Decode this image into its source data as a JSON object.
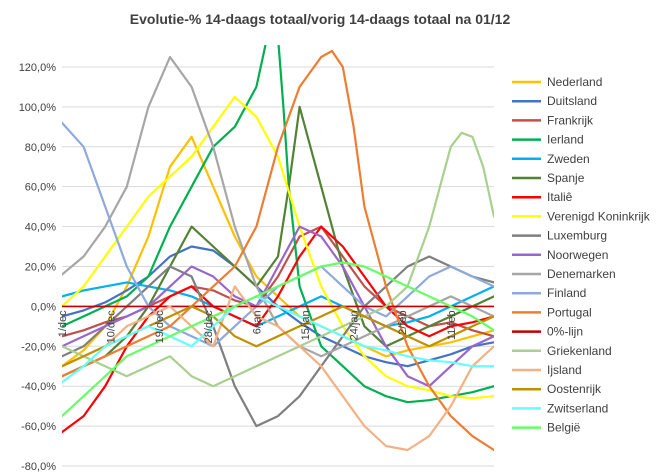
{
  "chart_data": {
    "type": "line",
    "title": "Evolutie-% 14-daags totaal/vorig 14-daags totaal na 01/12",
    "xlabel": "",
    "ylabel": "",
    "ylim": [
      -80,
      130
    ],
    "y_ticks": [
      "-80,0%",
      "-60,0%",
      "-40,0%",
      "-20,0%",
      "0,0%",
      "20,0%",
      "40,0%",
      "60,0%",
      "80,0%",
      "100,0%",
      "120,0%"
    ],
    "y_tick_values": [
      -80,
      -60,
      -40,
      -20,
      0,
      20,
      40,
      60,
      80,
      100,
      120
    ],
    "x_ticks": [
      {
        "label": "1/dec",
        "day": 0
      },
      {
        "label": "10/dec",
        "day": 9
      },
      {
        "label": "19/dec",
        "day": 18
      },
      {
        "label": "28/dec",
        "day": 27
      },
      {
        "label": "6/jan",
        "day": 36
      },
      {
        "label": "15/jan",
        "day": 45
      },
      {
        "label": "24/jan",
        "day": 54
      },
      {
        "label": "2/feb",
        "day": 63
      },
      {
        "label": "11/feb",
        "day": 72
      }
    ],
    "x_range": [
      0,
      80
    ],
    "legend_position": "right",
    "grid": "horizontal",
    "series": [
      {
        "name": "Nederland",
        "color": "#FFC000",
        "x": [
          0,
          4,
          8,
          12,
          16,
          20,
          24,
          28,
          32,
          36,
          40,
          44,
          48,
          52,
          56,
          60,
          64,
          68,
          72,
          76,
          80
        ],
        "values": [
          -30,
          -22,
          -10,
          10,
          35,
          70,
          85,
          60,
          35,
          15,
          5,
          -5,
          -10,
          -15,
          -20,
          -25,
          -22,
          -20,
          -18,
          -15,
          -12
        ]
      },
      {
        "name": "Duitsland",
        "color": "#4472C4",
        "x": [
          0,
          4,
          8,
          12,
          16,
          20,
          24,
          28,
          32,
          36,
          40,
          44,
          48,
          52,
          56,
          60,
          64,
          68,
          72,
          76,
          80
        ],
        "values": [
          -5,
          -2,
          2,
          8,
          15,
          25,
          30,
          28,
          20,
          10,
          0,
          -8,
          -15,
          -20,
          -25,
          -28,
          -30,
          -27,
          -24,
          -20,
          -18
        ]
      },
      {
        "name": "Frankrijk",
        "color": "#C0504D",
        "x": [
          0,
          4,
          8,
          12,
          16,
          20,
          24,
          28,
          32,
          36,
          40,
          44,
          48,
          52,
          56,
          60,
          64,
          68,
          72,
          76,
          80
        ],
        "values": [
          -15,
          -12,
          -8,
          -5,
          0,
          5,
          10,
          8,
          3,
          0,
          15,
          35,
          40,
          25,
          10,
          0,
          -5,
          -10,
          -8,
          -12,
          -15
        ]
      },
      {
        "name": "Ierland",
        "color": "#00B050",
        "x": [
          0,
          4,
          8,
          12,
          16,
          20,
          24,
          28,
          32,
          36,
          38,
          39,
          40,
          41,
          42,
          44,
          48,
          52,
          56,
          60,
          64,
          68,
          72,
          76,
          80
        ],
        "values": [
          -10,
          -5,
          0,
          5,
          15,
          40,
          60,
          80,
          90,
          110,
          135,
          135,
          135,
          100,
          60,
          10,
          -20,
          -30,
          -40,
          -45,
          -48,
          -47,
          -45,
          -43,
          -40
        ]
      },
      {
        "name": "Zweden",
        "color": "#00B0F0",
        "x": [
          0,
          4,
          8,
          12,
          16,
          20,
          24,
          28,
          32,
          36,
          40,
          44,
          48,
          52,
          56,
          60,
          64,
          68,
          72,
          76,
          80
        ],
        "values": [
          5,
          8,
          10,
          12,
          10,
          8,
          5,
          0,
          -5,
          -10,
          -5,
          0,
          5,
          0,
          -5,
          -10,
          -8,
          -5,
          0,
          5,
          10
        ]
      },
      {
        "name": "Spanje",
        "color": "#548235",
        "x": [
          0,
          4,
          8,
          12,
          16,
          20,
          24,
          28,
          32,
          36,
          40,
          42,
          44,
          46,
          48,
          52,
          56,
          60,
          64,
          68,
          72,
          76,
          80
        ],
        "values": [
          -35,
          -30,
          -25,
          -15,
          0,
          20,
          40,
          30,
          20,
          10,
          25,
          60,
          100,
          80,
          60,
          20,
          -10,
          -20,
          -15,
          -10,
          -5,
          0,
          5
        ]
      },
      {
        "name": "Italiê",
        "color": "#FF0000",
        "x": [
          0,
          4,
          8,
          12,
          16,
          20,
          24,
          28,
          32,
          36,
          40,
          44,
          48,
          52,
          56,
          60,
          64,
          68,
          72,
          76,
          80
        ],
        "values": [
          -63,
          -55,
          -40,
          -20,
          -5,
          5,
          10,
          0,
          -5,
          -10,
          5,
          25,
          40,
          30,
          15,
          0,
          -10,
          -15,
          -10,
          -8,
          -5
        ]
      },
      {
        "name": "Verenigd Koninkrijk",
        "color": "#FFFF00",
        "x": [
          0,
          4,
          8,
          12,
          16,
          20,
          24,
          28,
          32,
          36,
          40,
          44,
          48,
          52,
          56,
          60,
          64,
          68,
          72,
          76,
          80
        ],
        "values": [
          0,
          10,
          25,
          40,
          55,
          65,
          75,
          90,
          105,
          95,
          75,
          40,
          10,
          -10,
          -25,
          -35,
          -40,
          -42,
          -45,
          -46,
          -45
        ]
      },
      {
        "name": "Luxemburg",
        "color": "#7F7F7F",
        "x": [
          0,
          4,
          8,
          12,
          16,
          20,
          24,
          28,
          32,
          36,
          40,
          44,
          48,
          52,
          56,
          60,
          64,
          68,
          72,
          76,
          80
        ],
        "values": [
          -25,
          -20,
          -10,
          0,
          10,
          20,
          15,
          -10,
          -40,
          -60,
          -55,
          -45,
          -30,
          -15,
          0,
          10,
          20,
          25,
          20,
          15,
          12
        ]
      },
      {
        "name": "Noorwegen",
        "color": "#9966CC",
        "x": [
          0,
          4,
          8,
          12,
          16,
          20,
          24,
          28,
          32,
          36,
          40,
          44,
          48,
          52,
          56,
          60,
          64,
          68,
          72,
          76,
          80
        ],
        "values": [
          -20,
          -15,
          -10,
          -5,
          0,
          10,
          20,
          15,
          5,
          0,
          20,
          40,
          35,
          20,
          0,
          -20,
          -35,
          -40,
          -30,
          -20,
          -15
        ]
      },
      {
        "name": "Denemarken",
        "color": "#A6A6A6",
        "x": [
          0,
          4,
          8,
          12,
          16,
          20,
          24,
          28,
          32,
          36,
          40,
          44,
          48,
          52,
          56,
          60,
          64,
          68,
          72,
          76,
          80
        ],
        "values": [
          16,
          25,
          40,
          60,
          100,
          125,
          110,
          80,
          40,
          10,
          -10,
          -20,
          -25,
          -20,
          -15,
          -10,
          -5,
          0,
          5,
          0,
          -5
        ]
      },
      {
        "name": "Finland",
        "color": "#8EA9DB",
        "x": [
          0,
          4,
          8,
          12,
          16,
          20,
          24,
          28,
          32,
          36,
          40,
          44,
          48,
          52,
          56,
          60,
          64,
          68,
          72,
          76,
          80
        ],
        "values": [
          92,
          80,
          50,
          20,
          0,
          -10,
          -15,
          -20,
          -10,
          0,
          10,
          15,
          20,
          10,
          0,
          -5,
          5,
          15,
          20,
          15,
          10
        ]
      },
      {
        "name": "Portugal",
        "color": "#ED7D31",
        "x": [
          0,
          4,
          8,
          12,
          16,
          20,
          24,
          28,
          32,
          36,
          40,
          44,
          48,
          50,
          52,
          54,
          56,
          60,
          64,
          68,
          72,
          76,
          80
        ],
        "values": [
          -35,
          -30,
          -25,
          -20,
          -15,
          -10,
          0,
          10,
          20,
          40,
          80,
          110,
          125,
          128,
          120,
          90,
          50,
          10,
          -20,
          -40,
          -55,
          -65,
          -72
        ]
      },
      {
        "name": "0%-lijn",
        "color": "#C00000",
        "x": [
          0,
          80
        ],
        "values": [
          0,
          0
        ]
      },
      {
        "name": "Griekenland",
        "color": "#A9D08E",
        "x": [
          0,
          4,
          8,
          12,
          16,
          20,
          24,
          28,
          32,
          36,
          40,
          44,
          48,
          52,
          56,
          60,
          64,
          68,
          70,
          72,
          74,
          76,
          78,
          80
        ],
        "values": [
          -20,
          -25,
          -30,
          -35,
          -30,
          -25,
          -35,
          -40,
          -35,
          -30,
          -25,
          -20,
          -15,
          -10,
          -5,
          0,
          10,
          40,
          60,
          80,
          87,
          85,
          70,
          45
        ]
      },
      {
        "name": "Ijsland",
        "color": "#F4B183",
        "x": [
          0,
          4,
          8,
          12,
          16,
          20,
          24,
          28,
          32,
          36,
          40,
          44,
          48,
          52,
          56,
          60,
          64,
          68,
          72,
          76,
          80
        ],
        "values": [
          -30,
          -25,
          -20,
          -10,
          -5,
          0,
          -10,
          -20,
          10,
          -5,
          -10,
          -20,
          -30,
          -45,
          -60,
          -70,
          -72,
          -65,
          -50,
          -30,
          -20
        ]
      },
      {
        "name": "Oostenrijk",
        "color": "#BF9000",
        "x": [
          0,
          4,
          8,
          12,
          16,
          20,
          24,
          28,
          32,
          36,
          40,
          44,
          48,
          52,
          56,
          60,
          64,
          68,
          72,
          76,
          80
        ],
        "values": [
          -30,
          -25,
          -20,
          -15,
          -10,
          -5,
          0,
          -5,
          -15,
          -20,
          -15,
          -10,
          -5,
          0,
          -5,
          -10,
          -15,
          -20,
          -15,
          -10,
          -5
        ]
      },
      {
        "name": "Zwitserland",
        "color": "#66FFFF",
        "x": [
          0,
          4,
          8,
          12,
          16,
          20,
          24,
          28,
          32,
          36,
          40,
          44,
          48,
          52,
          56,
          60,
          64,
          68,
          72,
          76,
          80
        ],
        "values": [
          -38,
          -30,
          -20,
          -15,
          -10,
          -15,
          -20,
          -10,
          0,
          5,
          0,
          -5,
          -10,
          -15,
          -20,
          -22,
          -25,
          -27,
          -28,
          -30,
          -30
        ]
      },
      {
        "name": "België",
        "color": "#66FF66",
        "x": [
          0,
          4,
          8,
          12,
          16,
          20,
          24,
          28,
          32,
          36,
          40,
          44,
          48,
          52,
          56,
          60,
          64,
          68,
          72,
          76,
          80
        ],
        "values": [
          -55,
          -45,
          -35,
          -25,
          -20,
          -15,
          -10,
          -5,
          0,
          5,
          10,
          15,
          20,
          22,
          20,
          15,
          10,
          5,
          0,
          -5,
          -12
        ]
      }
    ]
  }
}
